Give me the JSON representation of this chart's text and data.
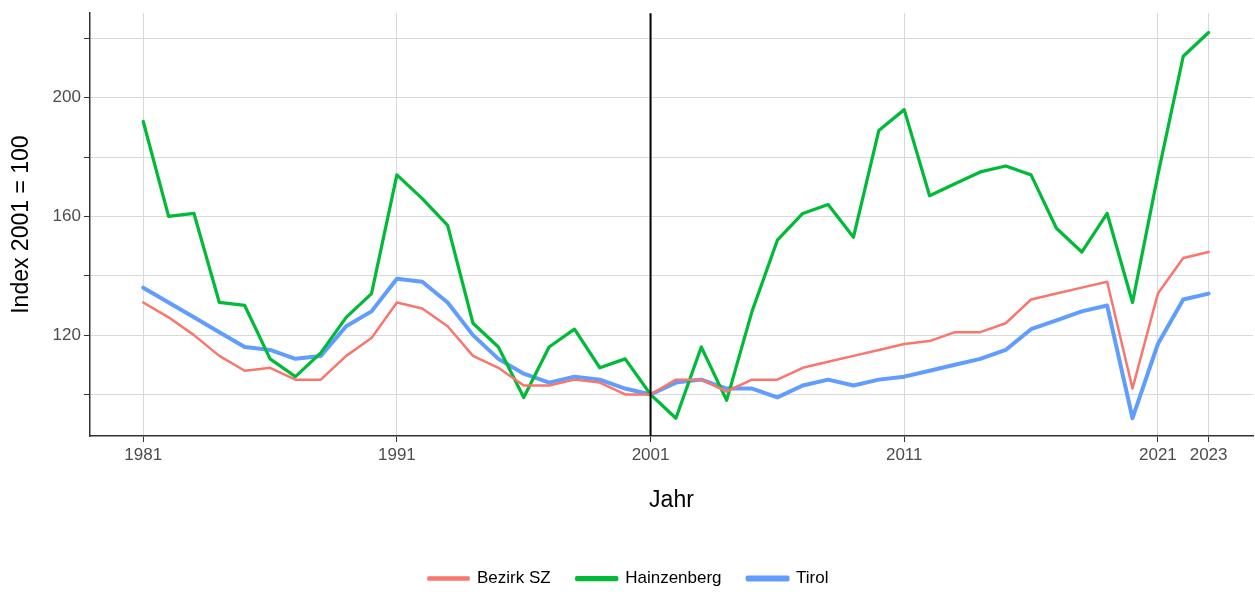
{
  "chart_data": {
    "type": "line",
    "xlabel": "Jahr",
    "ylabel": "Index 2001 = 100",
    "x": [
      1981,
      1982,
      1983,
      1984,
      1985,
      1986,
      1987,
      1988,
      1989,
      1990,
      1991,
      1992,
      1993,
      1994,
      1995,
      1996,
      1997,
      1998,
      1999,
      2000,
      2001,
      2002,
      2003,
      2004,
      2005,
      2006,
      2007,
      2008,
      2009,
      2010,
      2011,
      2012,
      2013,
      2014,
      2015,
      2016,
      2017,
      2018,
      2019,
      2020,
      2021,
      2022,
      2023
    ],
    "series": [
      {
        "name": "Bezirk SZ",
        "color": "#f8766d",
        "values": [
          131,
          126,
          120,
          113,
          108,
          109,
          105,
          105,
          113,
          119,
          131,
          129,
          123,
          113,
          109,
          103,
          103,
          105,
          104,
          100,
          100,
          105,
          105,
          101,
          105,
          105,
          109,
          111,
          113,
          115,
          117,
          118,
          121,
          121,
          124,
          132,
          134,
          136,
          138,
          102,
          134,
          146,
          148
        ]
      },
      {
        "name": "Hainzenberg",
        "color": "#00ba38",
        "values": [
          192,
          160,
          161,
          131,
          130,
          112,
          106,
          114,
          126,
          134,
          174,
          166,
          157,
          124,
          116,
          99,
          116,
          122,
          109,
          112,
          100,
          92,
          116,
          98,
          128,
          152,
          161,
          164,
          153,
          189,
          196,
          167,
          171,
          175,
          177,
          174,
          156,
          148,
          161,
          131,
          174,
          214,
          222
        ]
      },
      {
        "name": "Tirol",
        "color": "#619cff",
        "values": [
          136,
          131,
          126,
          121,
          116,
          115,
          112,
          113,
          123,
          128,
          139,
          138,
          131,
          120,
          112,
          107,
          104,
          106,
          105,
          102,
          100,
          104,
          105,
          102,
          102,
          99,
          103,
          105,
          103,
          105,
          106,
          108,
          110,
          112,
          115,
          122,
          125,
          128,
          130,
          92,
          117,
          132,
          134
        ]
      }
    ],
    "xlim": [
      1978.9,
      2024.75
    ],
    "xticks": [
      1981,
      1991,
      2001,
      2011,
      2021,
      2023
    ],
    "ylim": [
      86,
      228.5
    ],
    "yticks": [
      {
        "value": 100,
        "label": null
      },
      120,
      {
        "value": 140,
        "label": null
      },
      160,
      {
        "value": 180,
        "label": null
      },
      200,
      {
        "value": 220,
        "label": null
      }
    ],
    "ref_lines": [
      {
        "axis": "x",
        "value": 2001,
        "color": "#000000"
      }
    ],
    "grid": true,
    "legend": "bottom",
    "marker": "none",
    "line_style": "solid"
  }
}
